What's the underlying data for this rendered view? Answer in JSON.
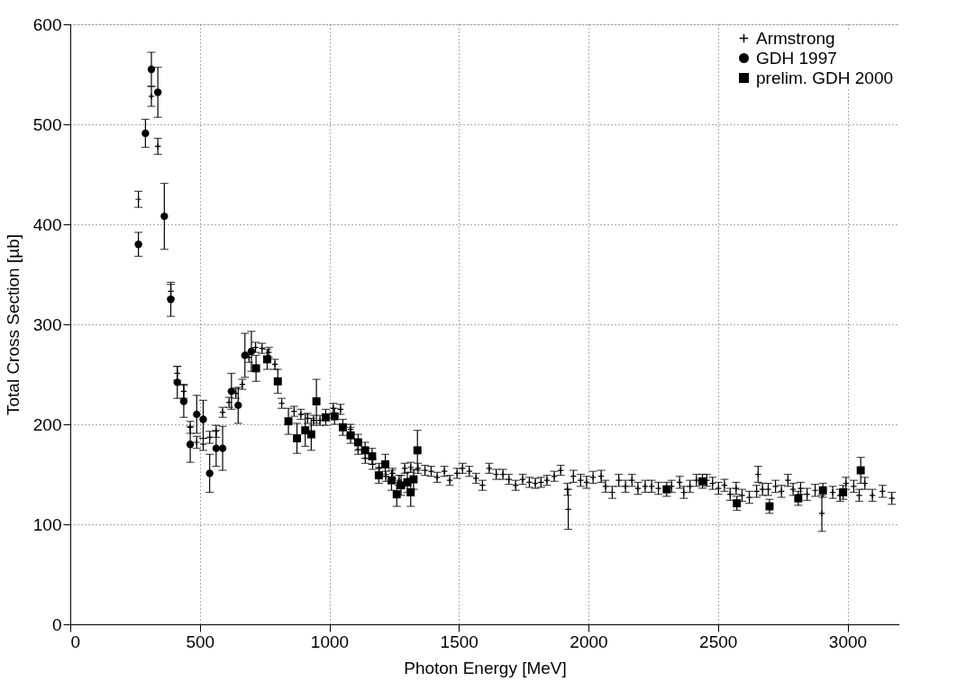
{
  "chart_data": {
    "type": "scatter",
    "xlabel": "Photon Energy [MeV]",
    "ylabel": "Total Cross Section [µb]",
    "xlim": [
      0,
      3200
    ],
    "ylim": [
      0,
      600
    ],
    "xticks": [
      0,
      500,
      1000,
      1500,
      2000,
      2500,
      3000
    ],
    "yticks": [
      0,
      100,
      200,
      300,
      400,
      500,
      600
    ],
    "grid": true,
    "legend": "top right",
    "series": [
      {
        "name": "Armstrong",
        "color": "#000000",
        "marker": "cross",
        "x": [
          263,
          313,
          338,
          388,
          413,
          438,
          463,
          488,
          513,
          538,
          563,
          588,
          613,
          639,
          664,
          690,
          715,
          740,
          766,
          790,
          816,
          864,
          890,
          916,
          939,
          964,
          1015,
          1043,
          1082,
          1111,
          1139,
          1167,
          1192,
          1218,
          1244,
          1269,
          1291,
          1314,
          1342,
          1369,
          1393,
          1416,
          1444,
          1465,
          1493,
          1514,
          1540,
          1566,
          1591,
          1617,
          1644,
          1670,
          1693,
          1719,
          1746,
          1772,
          1795,
          1817,
          1840,
          1868,
          1893,
          1919,
          1922,
          1942,
          1970,
          1993,
          2018,
          2049,
          2066,
          2092,
          2117,
          2143,
          2168,
          2191,
          2219,
          2244,
          2270,
          2321,
          2352,
          2368,
          2392,
          2417,
          2457,
          2479,
          2502,
          2525,
          2547,
          2570,
          2593,
          2621,
          2649,
          2655,
          2672,
          2694,
          2722,
          2745,
          2770,
          2790,
          2819,
          2844,
          2875,
          2901,
          2943,
          2971,
          2994,
          3024,
          3045,
          3067,
          3096,
          3135,
          3171
        ],
        "values": [
          425,
          528,
          478,
          333,
          251,
          233,
          197,
          182,
          180,
          187,
          193,
          212,
          222,
          231,
          240,
          267,
          277,
          276,
          272,
          260,
          221,
          213,
          210,
          206,
          204,
          204,
          216,
          215,
          195,
          175,
          166,
          160,
          156,
          148,
          151,
          144,
          156,
          157,
          156,
          154,
          153,
          147,
          153,
          144,
          151,
          156,
          153,
          146,
          139,
          156,
          150,
          150,
          145,
          139,
          145,
          142,
          141,
          142,
          144,
          148,
          154,
          135,
          115,
          148,
          144,
          142,
          147,
          148,
          138,
          132,
          144,
          138,
          144,
          136,
          138,
          138,
          136,
          138,
          142,
          132,
          138,
          144,
          144,
          141,
          136,
          139,
          130,
          136,
          129,
          127,
          133,
          150,
          135,
          135,
          138,
          133,
          144,
          135,
          136,
          130,
          134,
          111,
          132,
          129,
          141,
          138,
          129,
          141,
          129,
          133,
          126
        ],
        "errors": [
          8,
          10,
          8,
          7,
          7,
          7,
          6,
          6,
          6,
          6,
          6,
          5,
          5,
          5,
          5,
          5,
          5,
          5,
          5,
          5,
          5,
          5,
          5,
          5,
          5,
          5,
          5,
          5,
          5,
          5,
          5,
          5,
          5,
          5,
          5,
          5,
          5,
          5,
          5,
          5,
          5,
          5,
          5,
          5,
          5,
          5,
          5,
          5,
          5,
          5,
          5,
          5,
          5,
          5,
          5,
          5,
          5,
          5,
          5,
          5,
          5,
          6,
          20,
          6,
          6,
          6,
          6,
          6,
          6,
          6,
          6,
          6,
          6,
          6,
          6,
          6,
          6,
          6,
          6,
          6,
          6,
          6,
          6,
          6,
          6,
          6,
          6,
          6,
          6,
          6,
          6,
          8,
          6,
          6,
          6,
          6,
          6,
          6,
          6,
          6,
          6,
          18,
          6,
          6,
          6,
          6,
          6,
          6,
          6,
          6,
          6
        ]
      },
      {
        "name": "GDH 1997",
        "color": "#000000",
        "marker": "circle",
        "x": [
          263,
          290,
          313,
          338,
          363,
          388,
          413,
          438,
          463,
          488,
          513,
          538,
          563,
          588,
          622,
          648,
          674,
          699
        ],
        "values": [
          380,
          491,
          555,
          532,
          408,
          325,
          242,
          223,
          180,
          210,
          205,
          151,
          176,
          176,
          233,
          219,
          269,
          273
        ],
        "errors": [
          12,
          14,
          17,
          25,
          33,
          17,
          16,
          16,
          18,
          19,
          19,
          19,
          18,
          22,
          18,
          18,
          22,
          20
        ]
      },
      {
        "name": "prelim. GDH 2000",
        "color": "#000000",
        "marker": "square",
        "x": [
          717,
          760,
          801,
          842,
          875,
          907,
          930,
          950,
          986,
          1020,
          1052,
          1082,
          1111,
          1138,
          1165,
          1191,
          1216,
          1240,
          1260,
          1277,
          1301,
          1314,
          1325,
          1340,
          2302,
          2440,
          2573,
          2699,
          2810,
          2905,
          2983,
          3051
        ],
        "values": [
          256,
          265,
          243,
          203,
          186,
          194,
          190,
          223,
          207,
          208,
          197,
          189,
          182,
          174,
          168,
          149,
          160,
          144,
          130,
          139,
          142,
          132,
          145,
          174,
          135,
          143,
          121,
          118,
          126,
          134,
          132,
          154
        ],
        "errors": [
          13,
          10,
          12,
          13,
          15,
          16,
          16,
          22,
          8,
          8,
          8,
          8,
          8,
          8,
          8,
          8,
          10,
          10,
          12,
          10,
          10,
          14,
          10,
          20,
          7,
          7,
          7,
          7,
          7,
          7,
          7,
          13
        ]
      }
    ]
  }
}
